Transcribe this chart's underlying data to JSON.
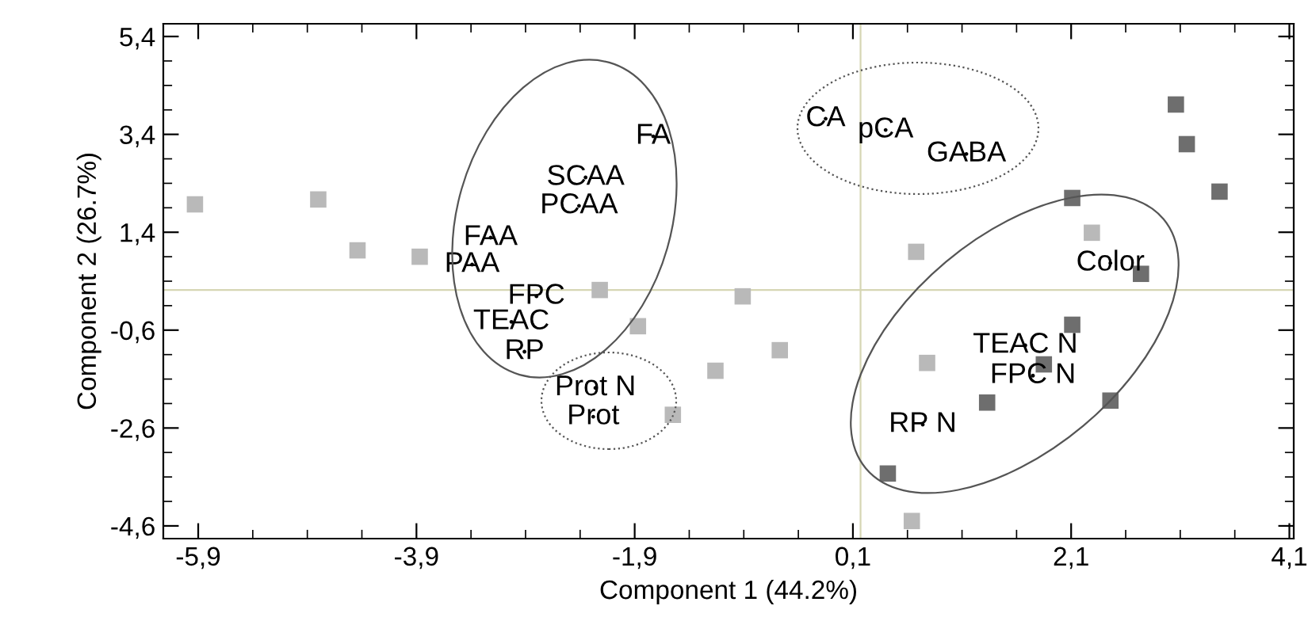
{
  "chart_data": {
    "type": "scatter",
    "xlabel": "Component 1 (44.2%)",
    "ylabel": "Component 2 (26.7%)",
    "marker": "square",
    "grid": false,
    "legend": false,
    "xlim": [
      -6.22,
      4.14
    ],
    "ylim": [
      -4.86,
      5.66
    ],
    "xticks": [
      {
        "value": -5.9,
        "label": "-5,9"
      },
      {
        "value": -3.9,
        "label": "-3,9"
      },
      {
        "value": -1.9,
        "label": "-1,9"
      },
      {
        "value": 0.1,
        "label": "0,1"
      },
      {
        "value": 2.1,
        "label": "2,1"
      },
      {
        "value": 4.1,
        "label": "4,1"
      }
    ],
    "yticks": [
      {
        "value": -4.6,
        "label": "-4,6"
      },
      {
        "value": -2.6,
        "label": "-2,6"
      },
      {
        "value": -0.6,
        "label": "-0,6"
      },
      {
        "value": 1.4,
        "label": "1,4"
      },
      {
        "value": 3.4,
        "label": "3,4"
      },
      {
        "value": 5.4,
        "label": "5,4"
      }
    ],
    "series": [
      {
        "color": "#b9b9b9",
        "x": [
          -5.93,
          -4.8,
          -4.44,
          -3.87,
          -2.22,
          -1.87,
          -1.16,
          -1.55,
          -0.91,
          -0.57,
          0.68,
          0.78,
          0.64,
          2.29
        ],
        "values": [
          1.97,
          2.07,
          1.03,
          0.9,
          0.22,
          -0.52,
          -1.43,
          -2.33,
          0.09,
          -1.01,
          1.0,
          -1.27,
          -4.5,
          1.39
        ]
      },
      {
        "color": "#6e6e6e",
        "x": [
          3.06,
          3.16,
          3.46,
          2.11,
          2.74,
          2.11,
          1.85,
          1.33,
          2.46,
          0.42
        ],
        "values": [
          4.01,
          3.2,
          2.23,
          2.1,
          0.55,
          -0.49,
          -1.3,
          -2.08,
          -2.04,
          -3.53
        ]
      },
      {
        "color": "#000000",
        "marker": "none",
        "x": [
          -1.73,
          -2.35,
          -2.41,
          -3.22,
          -3.39,
          -2.8,
          -3.03,
          -2.91,
          -2.26,
          -2.28,
          -0.15,
          0.4,
          1.14,
          2.46,
          1.68,
          1.75,
          0.74
        ],
        "values": [
          3.36,
          2.52,
          1.94,
          1.29,
          0.74,
          0.09,
          -0.43,
          -1.04,
          -1.78,
          -2.37,
          3.72,
          3.49,
          3.0,
          0.77,
          -0.91,
          -1.53,
          -2.53
        ],
        "value_labels": [
          "FA",
          "SCAA",
          "PCAA",
          "FAA",
          "PAA",
          "FPC",
          "TEAC",
          "RP",
          "Prot N",
          "Prot",
          "CA",
          "pCA",
          "GABA",
          "Color",
          "TEAC N",
          "FPC N",
          "RP N"
        ]
      }
    ],
    "ref_lines": [
      {
        "axis": "y",
        "value": 0.22,
        "color": "#d6d6b4"
      },
      {
        "axis": "x",
        "value": 0.17,
        "color": "#d6d6b4"
      }
    ]
  }
}
